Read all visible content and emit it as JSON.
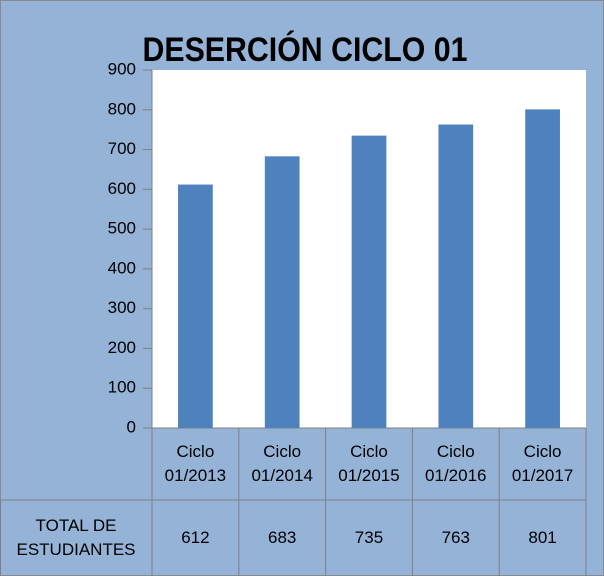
{
  "chart_data": {
    "type": "bar",
    "title": "DESERCIÓN  CICLO 01",
    "categories": [
      "Ciclo 01/2013",
      "Ciclo 01/2014",
      "Ciclo 01/2015",
      "Ciclo 01/2016",
      "Ciclo 01/2017"
    ],
    "series": [
      {
        "name": "TOTAL DE ESTUDIANTES",
        "color": "#4f81bd",
        "values": [
          612,
          683,
          735,
          763,
          801
        ]
      }
    ],
    "ylim": [
      0,
      900
    ],
    "yticks": [
      0,
      100,
      200,
      300,
      400,
      500,
      600,
      700,
      800,
      900
    ]
  }
}
